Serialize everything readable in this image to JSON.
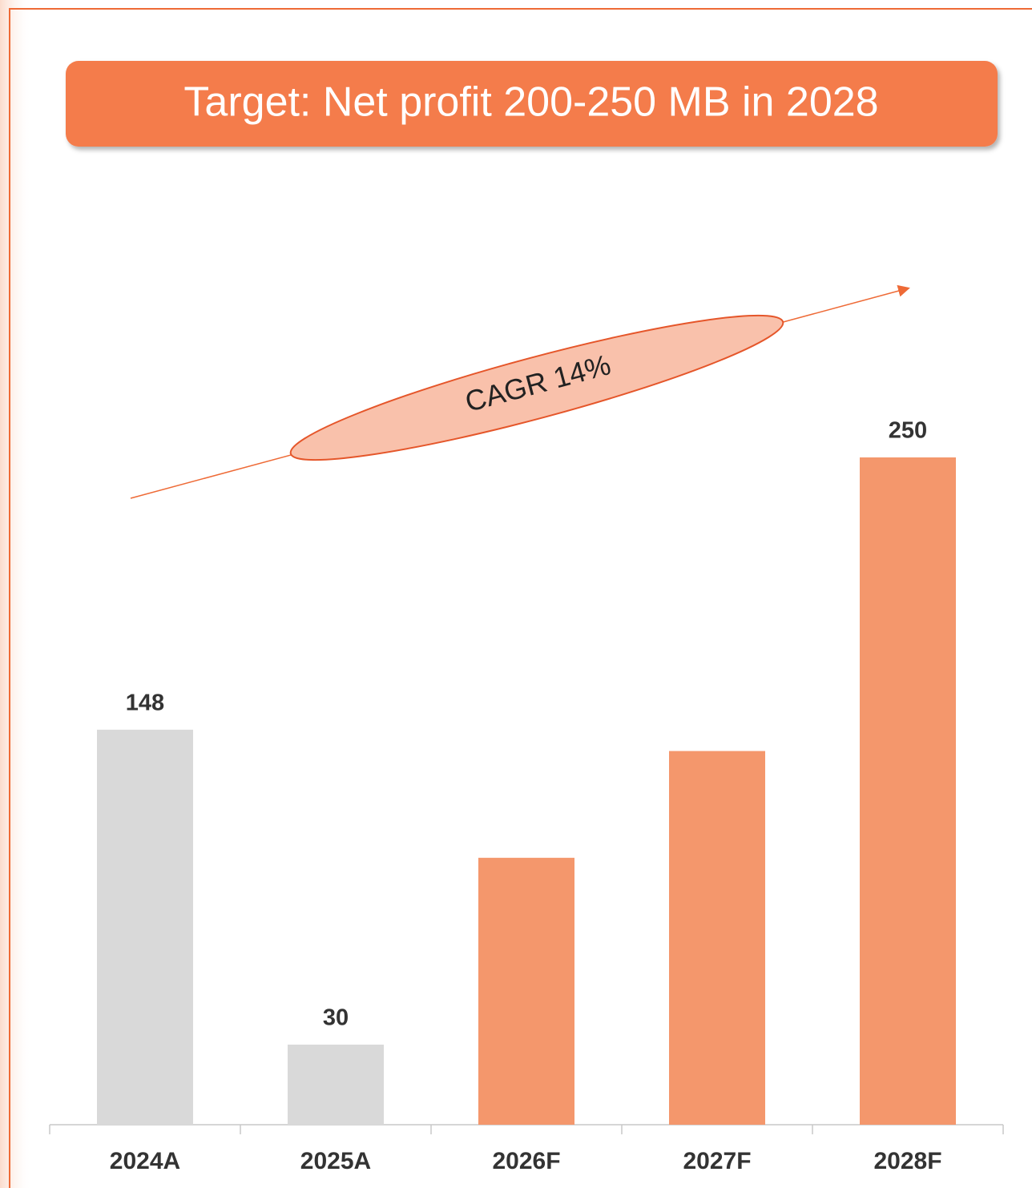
{
  "chart_data": {
    "type": "bar",
    "title": "Target: Net profit 200-250 MB in 2028",
    "annotation": "CAGR 14%",
    "categories": [
      "2024A",
      "2025A",
      "2026F",
      "2027F",
      "2028F"
    ],
    "values": [
      148,
      30,
      100,
      140,
      250
    ],
    "value_labels": [
      "148",
      "30",
      null,
      null,
      "250"
    ],
    "colors": [
      "#d9d9d9",
      "#d9d9d9",
      "#f4976c",
      "#f4976c",
      "#f4976c"
    ],
    "ylim": [
      0,
      250
    ]
  }
}
